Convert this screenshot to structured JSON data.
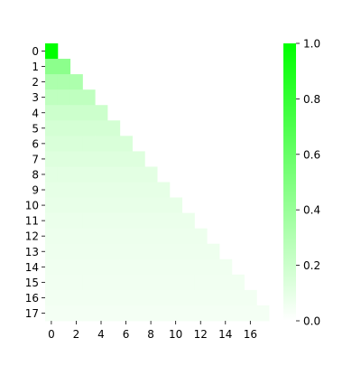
{
  "chart_data": {
    "type": "heatmap",
    "title": "",
    "xlabel": "",
    "ylabel": "",
    "shape": "lower-triangular",
    "rows": 18,
    "cols": 18,
    "x_tick_labels": [
      "0",
      "2",
      "4",
      "6",
      "8",
      "10",
      "12",
      "14",
      "16"
    ],
    "y_tick_labels": [
      "0",
      "1",
      "2",
      "3",
      "4",
      "5",
      "6",
      "7",
      "8",
      "9",
      "10",
      "11",
      "12",
      "13",
      "14",
      "15",
      "16",
      "17"
    ],
    "row_values": [
      1.0,
      0.45,
      0.32,
      0.25,
      0.2,
      0.17,
      0.15,
      0.13,
      0.11,
      0.1,
      0.09,
      0.08,
      0.07,
      0.065,
      0.06,
      0.055,
      0.05,
      0.045
    ],
    "colorbar": {
      "range": [
        0.0,
        1.0
      ],
      "ticks": [
        "0.0",
        "0.2",
        "0.4",
        "0.6",
        "0.8",
        "1.0"
      ],
      "color_low": "#ffffff",
      "color_high": "#00ff00"
    }
  }
}
